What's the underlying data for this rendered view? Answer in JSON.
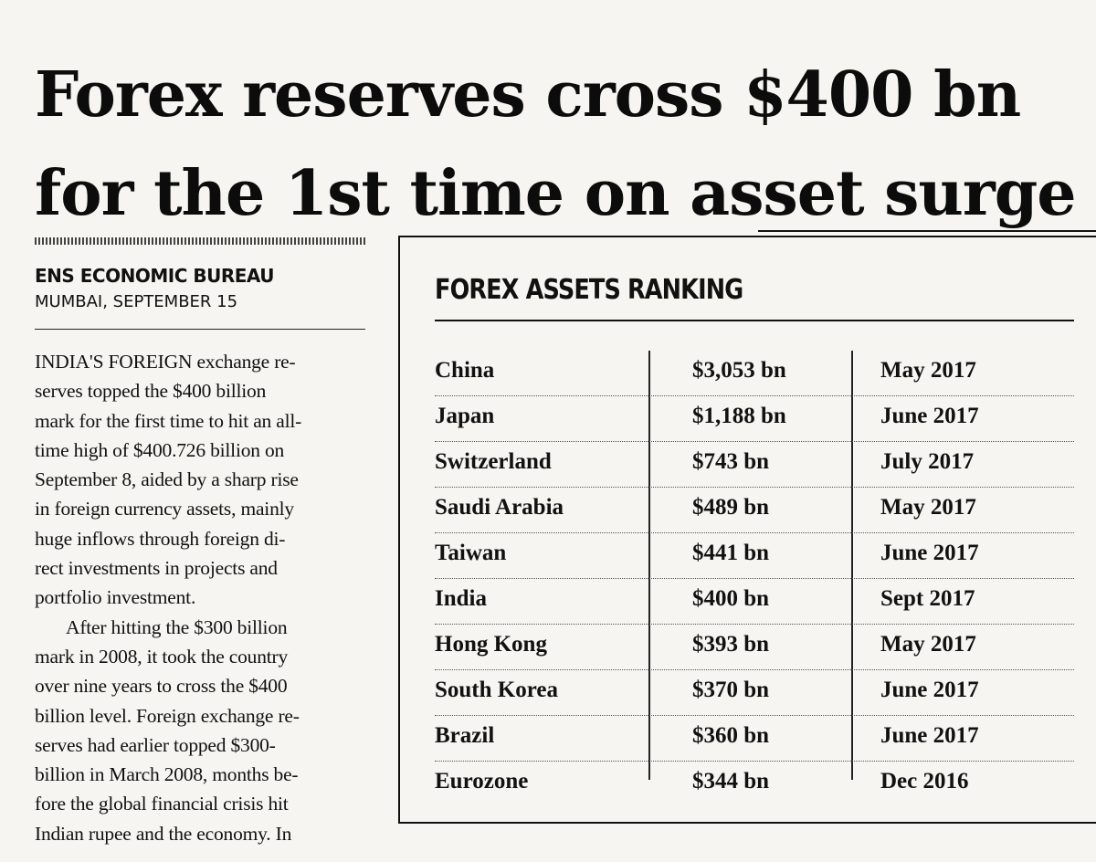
{
  "headline": {
    "line1": "Forex reserves cross $400 bn",
    "line2": "for the 1st time on asset surge"
  },
  "byline": "ENS ECONOMIC BUREAU",
  "dateline": "MUMBAI, SEPTEMBER 15",
  "article": {
    "para1": "INDIA'S FOREIGN exchange re-\nserves topped the $400 billion\nmark for the first time to hit an all-\ntime high of $400.726 billion on\nSeptember 8, aided by a sharp rise\nin foreign currency assets, mainly\nhuge inflows through foreign di-\nrect investments in projects and\nportfolio investment.",
    "para2": "After hitting the $300 billion\nmark in 2008, it took the country\nover nine years to cross the $400\nbillion level. Foreign exchange re-\nserves had earlier topped $300-\nbillion in March 2008, months be-\nfore the global financial crisis hit\nIndian rupee and the economy. In"
  },
  "box": {
    "title": "FOREX ASSETS RANKING",
    "rows": [
      {
        "country": "China",
        "amount": "$3,053 bn",
        "date": "May 2017"
      },
      {
        "country": "Japan",
        "amount": "$1,188 bn",
        "date": "June 2017"
      },
      {
        "country": "Switzerland",
        "amount": "$743 bn",
        "date": "July 2017"
      },
      {
        "country": "Saudi Arabia",
        "amount": "$489 bn",
        "date": "May 2017"
      },
      {
        "country": "Taiwan",
        "amount": "$441 bn",
        "date": "June 2017"
      },
      {
        "country": "India",
        "amount": "$400 bn",
        "date": "Sept 2017"
      },
      {
        "country": "Hong Kong",
        "amount": "$393 bn",
        "date": "May 2017"
      },
      {
        "country": "South Korea",
        "amount": "$370 bn",
        "date": "June 2017"
      },
      {
        "country": "Brazil",
        "amount": "$360 bn",
        "date": "June 2017"
      },
      {
        "country": "Eurozone",
        "amount": "$344 bn",
        "date": "Dec 2016"
      }
    ]
  }
}
